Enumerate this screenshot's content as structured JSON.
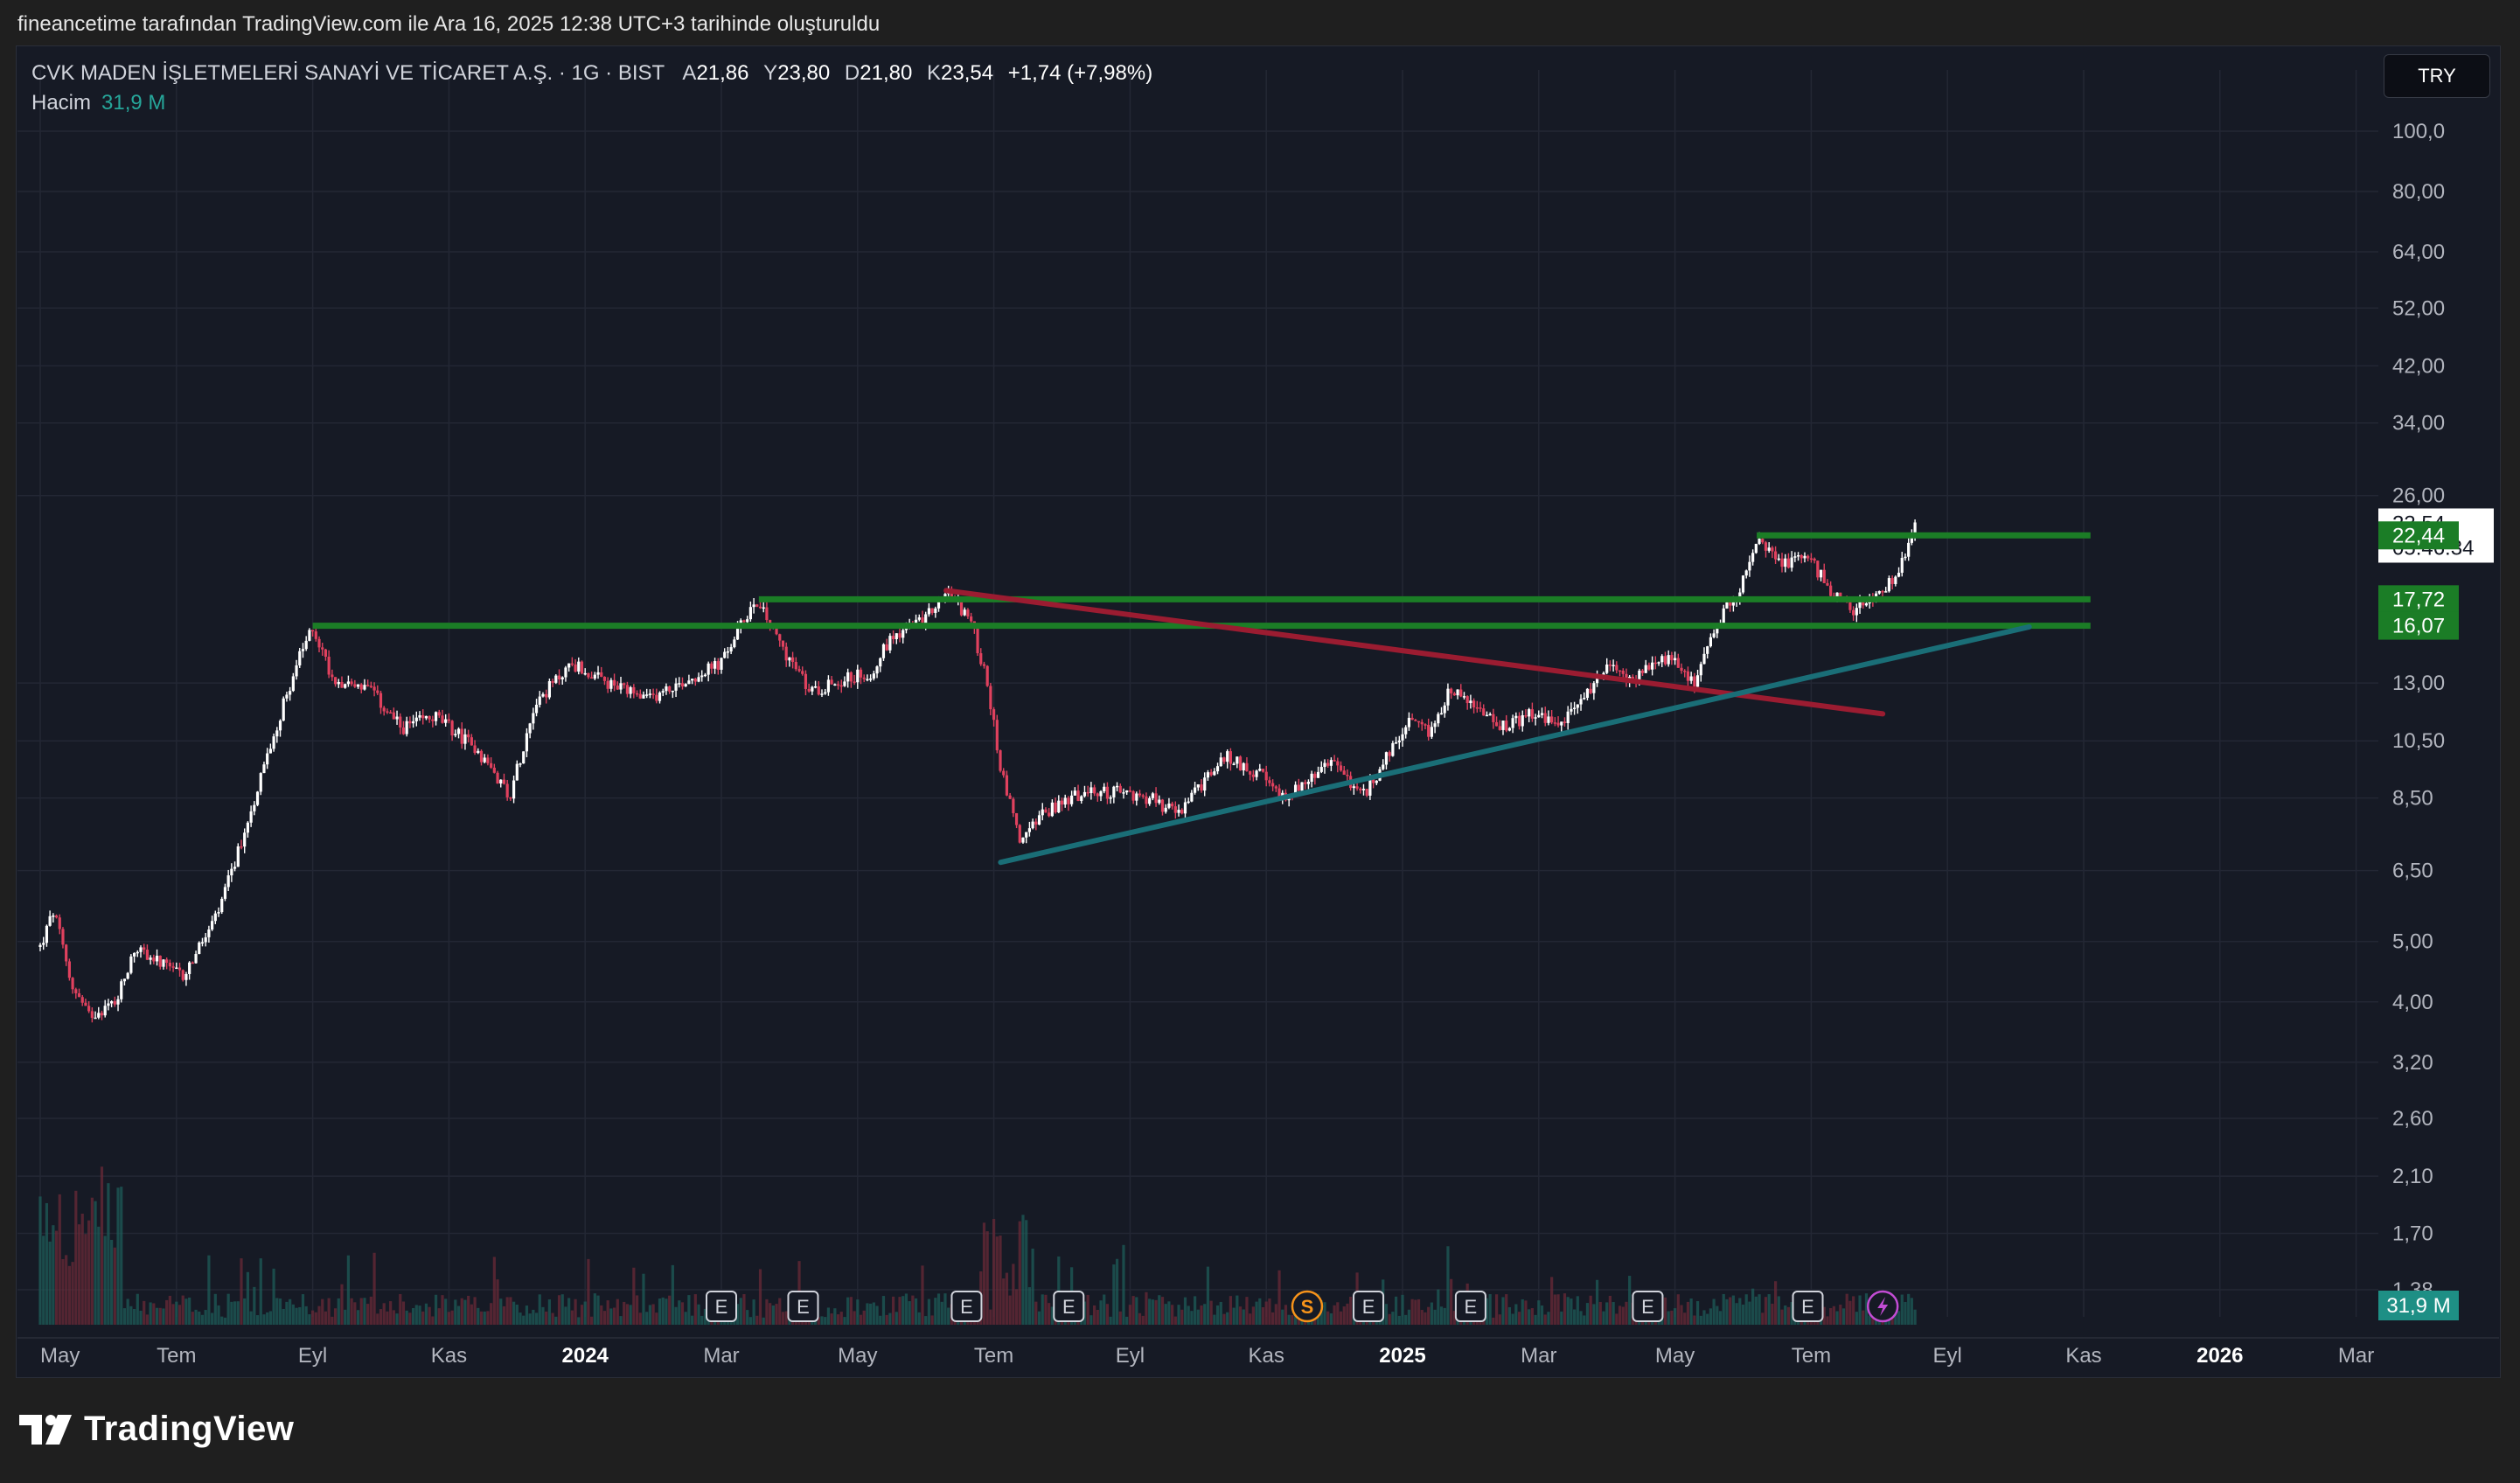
{
  "header": {
    "caption": "fineancetime tarafından TradingView.com ile Ara 16, 2025 12:38 UTC+3 tarihinde oluşturuldu"
  },
  "legend": {
    "symbol": "CVK MADEN İŞLETMELERİ SANAYİ VE TİCARET A.Ş. · 1G · BIST",
    "open_label": "A",
    "open": "21,86",
    "high_label": "Y",
    "high": "23,80",
    "low_label": "D",
    "low": "21,80",
    "close_label": "K",
    "close": "23,54",
    "change": "+1,74 (+7,98%)",
    "volume_label": "Hacim",
    "volume_value": "31,9 M"
  },
  "currency": "TRY",
  "brand": "TradingView",
  "colors": {
    "background": "#161a25",
    "up": "#ffffff",
    "down": "#e0415e",
    "support": "#1b7d26",
    "descending_trend": "#9b1c31",
    "ascending_trend": "#1a6e77",
    "volume": "#26a69a",
    "earnings_marker": "#d1d4dc",
    "dividend_marker": "#f7931a",
    "flash_marker": "#c24cd4"
  },
  "chart_data": {
    "type": "candlestick",
    "title": "CVK MADEN İŞLETMELERİ SANAYİ VE TİCARET A.Ş. · 1G · BIST",
    "y_scale": "log",
    "ylim": [
      1.38,
      100
    ],
    "y_ticks": [
      "100,0",
      "80,00",
      "64,00",
      "52,00",
      "42,00",
      "34,00",
      "26,00",
      "13,00",
      "10,50",
      "8,50",
      "6,50",
      "5,00",
      "4,00",
      "3,20",
      "2,60",
      "2,10",
      "1,70",
      "1,38"
    ],
    "x_ticks": [
      {
        "label": "May",
        "bold": false
      },
      {
        "label": "Tem",
        "bold": false
      },
      {
        "label": "Eyl",
        "bold": false
      },
      {
        "label": "Kas",
        "bold": false
      },
      {
        "label": "2024",
        "bold": true
      },
      {
        "label": "Mar",
        "bold": false
      },
      {
        "label": "May",
        "bold": false
      },
      {
        "label": "Tem",
        "bold": false
      },
      {
        "label": "Eyl",
        "bold": false
      },
      {
        "label": "Kas",
        "bold": false
      },
      {
        "label": "2025",
        "bold": true
      },
      {
        "label": "Mar",
        "bold": false
      },
      {
        "label": "May",
        "bold": false
      },
      {
        "label": "Tem",
        "bold": false
      },
      {
        "label": "Eyl",
        "bold": false
      },
      {
        "label": "Kas",
        "bold": false
      },
      {
        "label": "2026",
        "bold": true
      },
      {
        "label": "Mar",
        "bold": false
      }
    ],
    "price_path": [
      {
        "month": 0.0,
        "price": 4.9
      },
      {
        "month": 0.2,
        "price": 5.6
      },
      {
        "month": 0.45,
        "price": 4.3
      },
      {
        "month": 0.7,
        "price": 3.8
      },
      {
        "month": 1.1,
        "price": 4.0
      },
      {
        "month": 1.4,
        "price": 4.9
      },
      {
        "month": 1.9,
        "price": 4.5
      },
      {
        "month": 2.1,
        "price": 4.4
      },
      {
        "month": 2.6,
        "price": 5.5
      },
      {
        "month": 3.0,
        "price": 7.5
      },
      {
        "month": 3.4,
        "price": 10.5
      },
      {
        "month": 3.75,
        "price": 13.8
      },
      {
        "month": 4.0,
        "price": 16.0
      },
      {
        "month": 4.3,
        "price": 13.2
      },
      {
        "month": 4.8,
        "price": 12.8
      },
      {
        "month": 5.3,
        "price": 11.0
      },
      {
        "month": 5.8,
        "price": 11.5
      },
      {
        "month": 6.4,
        "price": 10.2
      },
      {
        "month": 6.9,
        "price": 8.6
      },
      {
        "month": 7.25,
        "price": 12.0
      },
      {
        "month": 7.8,
        "price": 14.0
      },
      {
        "month": 8.3,
        "price": 13.0
      },
      {
        "month": 8.9,
        "price": 12.2
      },
      {
        "month": 9.4,
        "price": 13.0
      },
      {
        "month": 10.0,
        "price": 14.0
      },
      {
        "month": 10.5,
        "price": 17.8
      },
      {
        "month": 10.9,
        "price": 14.8
      },
      {
        "month": 11.3,
        "price": 12.6
      },
      {
        "month": 11.8,
        "price": 13.2
      },
      {
        "month": 12.2,
        "price": 13.5
      },
      {
        "month": 12.5,
        "price": 15.5
      },
      {
        "month": 13.0,
        "price": 16.5
      },
      {
        "month": 13.3,
        "price": 18.3
      },
      {
        "month": 13.65,
        "price": 16.5
      },
      {
        "month": 13.9,
        "price": 13.0
      },
      {
        "month": 14.1,
        "price": 9.5
      },
      {
        "month": 14.4,
        "price": 7.2
      },
      {
        "month": 14.7,
        "price": 8.0
      },
      {
        "month": 15.2,
        "price": 8.6
      },
      {
        "month": 15.8,
        "price": 8.7
      },
      {
        "month": 16.3,
        "price": 8.5
      },
      {
        "month": 16.7,
        "price": 8.0
      },
      {
        "month": 17.0,
        "price": 8.8
      },
      {
        "month": 17.4,
        "price": 9.9
      },
      {
        "month": 17.9,
        "price": 9.3
      },
      {
        "month": 18.2,
        "price": 8.5
      },
      {
        "month": 18.6,
        "price": 9.0
      },
      {
        "month": 19.0,
        "price": 9.8
      },
      {
        "month": 19.4,
        "price": 8.5
      },
      {
        "month": 19.7,
        "price": 9.6
      },
      {
        "month": 20.1,
        "price": 11.2
      },
      {
        "month": 20.4,
        "price": 10.8
      },
      {
        "month": 20.7,
        "price": 12.8
      },
      {
        "month": 21.1,
        "price": 11.8
      },
      {
        "month": 21.5,
        "price": 11.0
      },
      {
        "month": 21.9,
        "price": 11.6
      },
      {
        "month": 22.3,
        "price": 11.1
      },
      {
        "month": 22.7,
        "price": 12.5
      },
      {
        "month": 23.0,
        "price": 13.8
      },
      {
        "month": 23.4,
        "price": 13.2
      },
      {
        "month": 23.9,
        "price": 14.3
      },
      {
        "month": 24.3,
        "price": 13.1
      },
      {
        "month": 24.6,
        "price": 16.0
      },
      {
        "month": 25.0,
        "price": 19.0
      },
      {
        "month": 25.25,
        "price": 22.0
      },
      {
        "month": 25.6,
        "price": 20.2
      },
      {
        "month": 25.9,
        "price": 21.0
      },
      {
        "month": 26.3,
        "price": 18.3
      },
      {
        "month": 26.6,
        "price": 17.0
      },
      {
        "month": 26.9,
        "price": 17.8
      },
      {
        "month": 27.2,
        "price": 19.0
      },
      {
        "month": 27.4,
        "price": 21.5
      },
      {
        "month": 27.55,
        "price": 23.54
      }
    ],
    "drawings": [
      {
        "kind": "support",
        "name": "level-16",
        "price": 16.07,
        "from_month": 4.0,
        "to_month": 30.1
      },
      {
        "kind": "support",
        "name": "level-18",
        "price": 17.72,
        "from_month": 10.55,
        "to_month": 30.1
      },
      {
        "kind": "support",
        "name": "level-22",
        "price": 22.44,
        "from_month": 25.2,
        "to_month": 30.1
      },
      {
        "kind": "trendline",
        "name": "descending",
        "from": {
          "month": 13.3,
          "price": 18.3
        },
        "to": {
          "month": 27.05,
          "price": 11.6
        }
      },
      {
        "kind": "trendline",
        "name": "ascending",
        "from": {
          "month": 14.1,
          "price": 6.7
        },
        "to": {
          "month": 29.2,
          "price": 16.0
        }
      }
    ],
    "price_tags": [
      {
        "name": "last-price-tag",
        "value": "23,54",
        "countdown": "05:46:34",
        "price": 23.54,
        "style": "white"
      },
      {
        "name": "level-tag-22",
        "value": "22,44",
        "price": 22.44,
        "style": "green"
      },
      {
        "name": "level-tag-18",
        "value": "17,72",
        "price": 17.72,
        "style": "green"
      },
      {
        "name": "level-tag-16",
        "value": "16,07",
        "price": 16.07,
        "style": "green"
      }
    ],
    "volume_tag": "31,9 M",
    "event_markers": [
      {
        "name": "earnings-marker",
        "month": 10.0,
        "symbol": "E"
      },
      {
        "name": "earnings-marker",
        "month": 11.2,
        "symbol": "E"
      },
      {
        "name": "earnings-marker",
        "month": 13.6,
        "symbol": "E"
      },
      {
        "name": "earnings-marker",
        "month": 15.1,
        "symbol": "E"
      },
      {
        "name": "dividend-marker",
        "month": 18.6,
        "symbol": "S"
      },
      {
        "name": "earnings-marker",
        "month": 19.5,
        "symbol": "E"
      },
      {
        "name": "earnings-marker",
        "month": 21.0,
        "symbol": "E"
      },
      {
        "name": "earnings-marker",
        "month": 23.6,
        "symbol": "E"
      },
      {
        "name": "earnings-marker",
        "month": 25.95,
        "symbol": "E"
      },
      {
        "name": "flash-marker",
        "month": 27.05,
        "symbol": "⚡"
      }
    ]
  }
}
